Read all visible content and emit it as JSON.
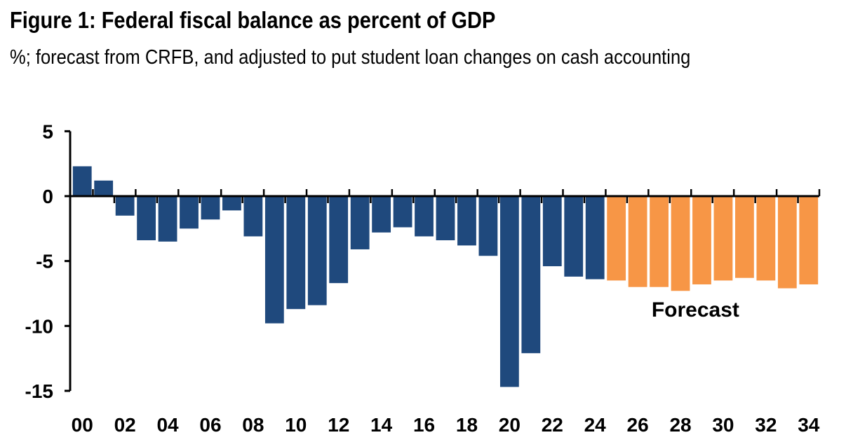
{
  "title": "Figure 1: Federal fiscal balance as percent of GDP",
  "subtitle": "%; forecast from CRFB, and adjusted to put student loan changes on cash accounting",
  "chart_data": {
    "type": "bar",
    "title": "Figure 1: Federal fiscal balance as percent of GDP",
    "subtitle": "%; forecast from CRFB, and adjusted to put student loan changes on cash accounting",
    "xlabel": "",
    "ylabel": "",
    "ylim": [
      -15,
      5
    ],
    "yticks": [
      "5",
      "0",
      "-5",
      "-10",
      "-15"
    ],
    "yticks_values": [
      5,
      0,
      -5,
      -10,
      -15
    ],
    "xtick_labels": [
      "00",
      "02",
      "04",
      "06",
      "08",
      "10",
      "12",
      "14",
      "16",
      "18",
      "20",
      "22",
      "24",
      "26",
      "28",
      "30",
      "32",
      "34"
    ],
    "categories": [
      "00",
      "01",
      "02",
      "03",
      "04",
      "05",
      "06",
      "07",
      "08",
      "09",
      "10",
      "11",
      "12",
      "13",
      "14",
      "15",
      "16",
      "17",
      "18",
      "19",
      "20",
      "21",
      "22",
      "23",
      "24",
      "25",
      "26",
      "27",
      "28",
      "29",
      "30",
      "31",
      "32",
      "33",
      "34"
    ],
    "values": [
      2.3,
      1.2,
      -1.5,
      -3.4,
      -3.5,
      -2.5,
      -1.8,
      -1.1,
      -3.1,
      -9.8,
      -8.7,
      -8.4,
      -6.7,
      -4.1,
      -2.8,
      -2.4,
      -3.1,
      -3.4,
      -3.8,
      -4.6,
      -14.7,
      -12.1,
      -5.4,
      -6.2,
      -6.4,
      -6.5,
      -7.0,
      -7.0,
      -7.3,
      -6.8,
      -6.5,
      -6.3,
      -6.5,
      -7.1,
      -6.8
    ],
    "series_colors": {
      "actual": "#1f497d",
      "forecast": "#f79646"
    },
    "forecast_start": "25",
    "annotation": "Forecast",
    "grid": false,
    "legend": "none"
  }
}
